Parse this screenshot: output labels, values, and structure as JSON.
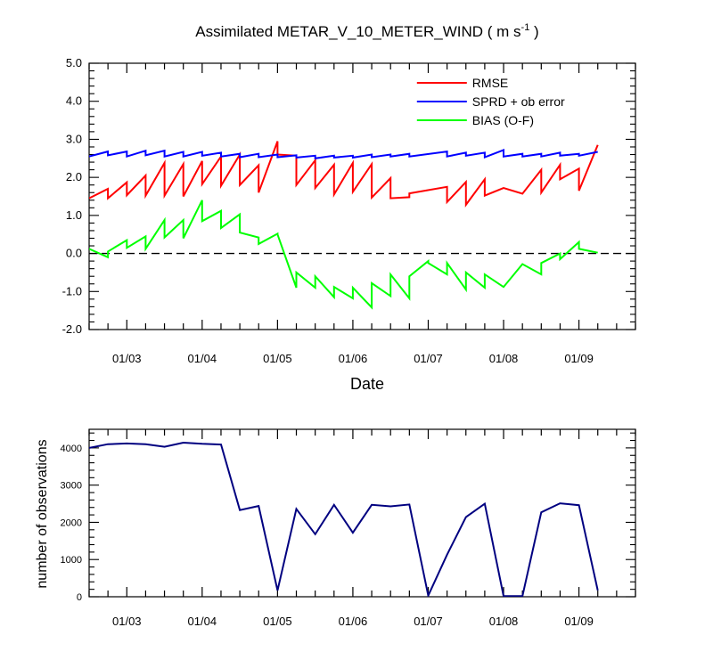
{
  "chart_data": [
    {
      "type": "line",
      "title": "Assimilated METAR_V_10_METER_WIND ( m s",
      "title_sup": "-1",
      "title_end": " )",
      "xlabel": "Date",
      "ylabel": "",
      "xlim": [
        2.5,
        9.75
      ],
      "ylim": [
        -2.0,
        5.0
      ],
      "yticks": [
        -2.0,
        -1.0,
        0.0,
        1.0,
        2.0,
        3.0,
        4.0,
        5.0
      ],
      "ytick_labels": [
        "-2.0",
        "-1.0",
        "0.0",
        "1.0",
        "2.0",
        "3.0",
        "4.0",
        "5.0"
      ],
      "xticks": [
        3,
        4,
        5,
        6,
        7,
        8,
        9
      ],
      "xtick_labels": [
        "01/03",
        "01/04",
        "01/05",
        "01/06",
        "01/07",
        "01/08",
        "01/09"
      ],
      "reference_line": 0.0,
      "legend": [
        "RMSE",
        "SPRD + ob error",
        "BIAS (O-F)"
      ],
      "series": [
        {
          "name": "RMSE",
          "color": "#ff0000",
          "points": [
            [
              2.5,
              1.45
            ],
            [
              2.75,
              1.7
            ],
            [
              2.75,
              1.45
            ],
            [
              3.0,
              1.87
            ],
            [
              3.0,
              1.53
            ],
            [
              3.25,
              2.05
            ],
            [
              3.25,
              1.52
            ],
            [
              3.5,
              2.38
            ],
            [
              3.5,
              1.52
            ],
            [
              3.75,
              2.35
            ],
            [
              3.75,
              1.5
            ],
            [
              4.0,
              2.43
            ],
            [
              4.0,
              1.82
            ],
            [
              4.25,
              2.55
            ],
            [
              4.25,
              1.78
            ],
            [
              4.5,
              2.6
            ],
            [
              4.5,
              1.8
            ],
            [
              4.75,
              2.32
            ],
            [
              4.75,
              1.6
            ],
            [
              5.0,
              2.95
            ],
            [
              5.0,
              2.6
            ],
            [
              5.25,
              2.57
            ],
            [
              5.25,
              1.8
            ],
            [
              5.5,
              2.45
            ],
            [
              5.5,
              1.72
            ],
            [
              5.75,
              2.33
            ],
            [
              5.75,
              1.55
            ],
            [
              6.0,
              2.38
            ],
            [
              6.0,
              1.62
            ],
            [
              6.25,
              2.35
            ],
            [
              6.25,
              1.47
            ],
            [
              6.5,
              1.98
            ],
            [
              6.5,
              1.45
            ],
            [
              6.75,
              1.48
            ],
            [
              6.75,
              1.58
            ],
            [
              7.25,
              1.75
            ],
            [
              7.25,
              1.35
            ],
            [
              7.5,
              1.88
            ],
            [
              7.5,
              1.28
            ],
            [
              7.75,
              1.95
            ],
            [
              7.75,
              1.52
            ],
            [
              8.0,
              1.72
            ],
            [
              8.25,
              1.57
            ],
            [
              8.5,
              2.2
            ],
            [
              8.5,
              1.6
            ],
            [
              8.75,
              2.33
            ],
            [
              8.75,
              1.95
            ],
            [
              9.0,
              2.23
            ],
            [
              9.0,
              1.65
            ],
            [
              9.25,
              2.85
            ]
          ]
        },
        {
          "name": "SPRD + ob error",
          "color": "#0000ff",
          "points": [
            [
              2.5,
              2.55
            ],
            [
              2.75,
              2.68
            ],
            [
              2.75,
              2.58
            ],
            [
              3.0,
              2.68
            ],
            [
              3.0,
              2.55
            ],
            [
              3.25,
              2.7
            ],
            [
              3.25,
              2.58
            ],
            [
              3.5,
              2.7
            ],
            [
              3.5,
              2.55
            ],
            [
              3.75,
              2.67
            ],
            [
              3.75,
              2.55
            ],
            [
              4.0,
              2.67
            ],
            [
              4.0,
              2.57
            ],
            [
              4.25,
              2.65
            ],
            [
              4.25,
              2.55
            ],
            [
              4.5,
              2.62
            ],
            [
              4.5,
              2.53
            ],
            [
              4.75,
              2.62
            ],
            [
              4.75,
              2.53
            ],
            [
              5.0,
              2.6
            ],
            [
              5.0,
              2.53
            ],
            [
              5.25,
              2.58
            ],
            [
              5.25,
              2.52
            ],
            [
              5.5,
              2.57
            ],
            [
              5.5,
              2.5
            ],
            [
              5.75,
              2.57
            ],
            [
              5.75,
              2.52
            ],
            [
              6.0,
              2.57
            ],
            [
              6.0,
              2.52
            ],
            [
              6.25,
              2.6
            ],
            [
              6.25,
              2.53
            ],
            [
              6.5,
              2.6
            ],
            [
              6.5,
              2.55
            ],
            [
              6.75,
              2.62
            ],
            [
              6.75,
              2.55
            ],
            [
              7.25,
              2.68
            ],
            [
              7.25,
              2.55
            ],
            [
              7.5,
              2.65
            ],
            [
              7.5,
              2.57
            ],
            [
              7.75,
              2.65
            ],
            [
              7.75,
              2.53
            ],
            [
              8.0,
              2.72
            ],
            [
              8.0,
              2.55
            ],
            [
              8.25,
              2.62
            ],
            [
              8.25,
              2.55
            ],
            [
              8.5,
              2.62
            ],
            [
              8.5,
              2.55
            ],
            [
              8.75,
              2.65
            ],
            [
              8.75,
              2.57
            ],
            [
              9.0,
              2.62
            ],
            [
              9.0,
              2.57
            ],
            [
              9.25,
              2.67
            ]
          ]
        },
        {
          "name": "BIAS (O-F)",
          "color": "#00ff00",
          "points": [
            [
              2.5,
              0.12
            ],
            [
              2.75,
              -0.1
            ],
            [
              2.75,
              0.05
            ],
            [
              3.0,
              0.35
            ],
            [
              3.0,
              0.15
            ],
            [
              3.25,
              0.45
            ],
            [
              3.25,
              0.12
            ],
            [
              3.5,
              0.88
            ],
            [
              3.5,
              0.42
            ],
            [
              3.75,
              0.88
            ],
            [
              3.75,
              0.4
            ],
            [
              4.0,
              1.4
            ],
            [
              4.0,
              0.85
            ],
            [
              4.25,
              1.12
            ],
            [
              4.25,
              0.67
            ],
            [
              4.5,
              1.03
            ],
            [
              4.5,
              0.55
            ],
            [
              4.75,
              0.42
            ],
            [
              4.75,
              0.25
            ],
            [
              5.0,
              0.52
            ],
            [
              5.0,
              0.5
            ],
            [
              5.25,
              -0.9
            ],
            [
              5.25,
              -0.5
            ],
            [
              5.5,
              -0.9
            ],
            [
              5.5,
              -0.6
            ],
            [
              5.75,
              -1.15
            ],
            [
              5.75,
              -0.88
            ],
            [
              6.0,
              -1.18
            ],
            [
              6.0,
              -0.9
            ],
            [
              6.25,
              -1.42
            ],
            [
              6.25,
              -0.78
            ],
            [
              6.5,
              -1.12
            ],
            [
              6.5,
              -0.55
            ],
            [
              6.75,
              -1.18
            ],
            [
              6.75,
              -0.6
            ],
            [
              7.0,
              -0.2
            ],
            [
              7.0,
              -0.25
            ],
            [
              7.25,
              -0.55
            ],
            [
              7.25,
              -0.25
            ],
            [
              7.5,
              -0.95
            ],
            [
              7.5,
              -0.5
            ],
            [
              7.75,
              -0.9
            ],
            [
              7.75,
              -0.55
            ],
            [
              8.0,
              -0.88
            ],
            [
              8.25,
              -0.28
            ],
            [
              8.5,
              -0.55
            ],
            [
              8.5,
              -0.25
            ],
            [
              8.75,
              0.0
            ],
            [
              8.75,
              -0.15
            ],
            [
              9.0,
              0.3
            ],
            [
              9.0,
              0.12
            ],
            [
              9.25,
              0.02
            ]
          ]
        }
      ]
    },
    {
      "type": "line",
      "title": "",
      "xlabel": "",
      "ylabel": "number of observations",
      "xlim": [
        2.5,
        9.75
      ],
      "ylim": [
        0,
        4500
      ],
      "yticks": [
        0,
        1000,
        2000,
        3000,
        4000
      ],
      "ytick_labels": [
        "0",
        "1000",
        "2000",
        "3000",
        "4000"
      ],
      "xticks": [
        3,
        4,
        5,
        6,
        7,
        8,
        9
      ],
      "xtick_labels": [
        "01/03",
        "01/04",
        "01/05",
        "01/06",
        "01/07",
        "01/08",
        "01/09"
      ],
      "series": [
        {
          "name": "number of observations",
          "color": "#000080",
          "x": [
            2.5,
            2.75,
            3.0,
            3.25,
            3.5,
            3.75,
            4.0,
            4.25,
            4.5,
            4.75,
            5.0,
            5.25,
            5.5,
            5.75,
            6.0,
            6.25,
            6.5,
            6.75,
            7.0,
            7.25,
            7.5,
            7.75,
            8.0,
            8.25,
            8.5,
            8.75,
            9.0,
            9.25
          ],
          "values": [
            4000,
            4100,
            4120,
            4100,
            4030,
            4140,
            4110,
            4090,
            2330,
            2440,
            170,
            2360,
            1680,
            2470,
            1720,
            2470,
            2430,
            2480,
            30,
            1130,
            2140,
            2500,
            20,
            20,
            2270,
            2510,
            2460,
            170
          ]
        }
      ]
    }
  ]
}
